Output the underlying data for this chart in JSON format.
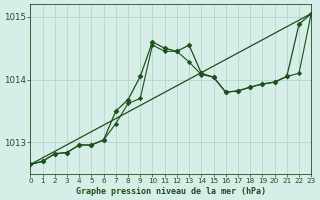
{
  "title": "Graphe pression niveau de la mer (hPa)",
  "bg_color": "#d6ede8",
  "grid_color": "#aad4c8",
  "dark_green": "#1a5218",
  "x_min": 0,
  "x_max": 23,
  "y_min": 1012.5,
  "y_max": 1015.2,
  "yticks": [
    1013,
    1014,
    1015
  ],
  "xticks": [
    0,
    1,
    2,
    3,
    4,
    5,
    6,
    7,
    8,
    9,
    10,
    11,
    12,
    13,
    14,
    15,
    16,
    17,
    18,
    19,
    20,
    21,
    22,
    23
  ],
  "line1_x": [
    0,
    23
  ],
  "line1_y": [
    1012.65,
    1015.05
  ],
  "line2_x": [
    0,
    1,
    2,
    3,
    4,
    5,
    6,
    7,
    8,
    9,
    10,
    11,
    12,
    13,
    14,
    15,
    16,
    17,
    18,
    19,
    20,
    21,
    22,
    23
  ],
  "line2_y": [
    1012.65,
    1012.7,
    1012.82,
    1012.84,
    1012.96,
    1012.96,
    1013.04,
    1013.5,
    1013.68,
    1014.05,
    1014.6,
    1014.5,
    1014.45,
    1014.55,
    1014.1,
    1014.04,
    1013.8,
    1013.82,
    1013.88,
    1013.93,
    1013.96,
    1014.05,
    1014.88,
    1015.05
  ],
  "line3_x": [
    0,
    1,
    2,
    3,
    4,
    5,
    6,
    7,
    8,
    9,
    10,
    11,
    12,
    13,
    14,
    15,
    16,
    17,
    18,
    19,
    20,
    21,
    22,
    23
  ],
  "line3_y": [
    1012.65,
    1012.7,
    1012.82,
    1012.84,
    1012.96,
    1012.96,
    1013.04,
    1013.3,
    1013.62,
    1013.7,
    1014.55,
    1014.45,
    1014.45,
    1014.28,
    1014.08,
    1014.04,
    1013.8,
    1013.82,
    1013.88,
    1013.93,
    1013.96,
    1014.05,
    1014.1,
    1015.05
  ]
}
